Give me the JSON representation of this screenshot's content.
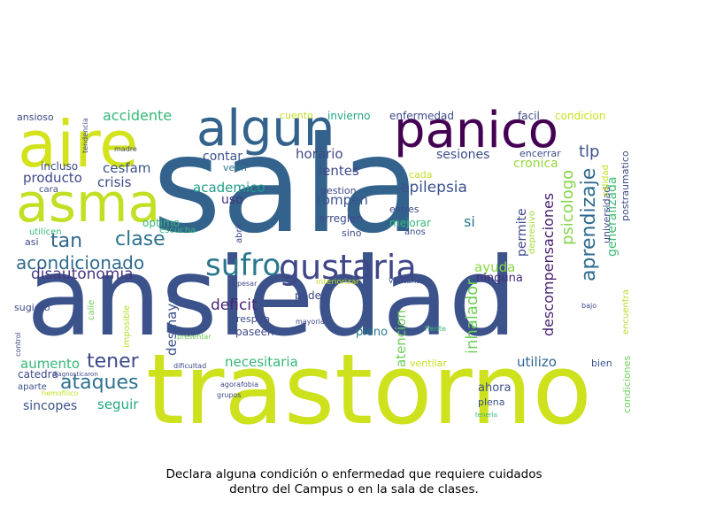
{
  "words": [
    {
      "text": "sala",
      "color": "#33638d"
    },
    {
      "text": "ansiedad",
      "color": "#3b528b"
    },
    {
      "text": "trastorno",
      "color": "#cde11d"
    },
    {
      "text": "panico",
      "color": "#440154"
    },
    {
      "text": "algun",
      "color": "#33638d"
    },
    {
      "text": "aire",
      "color": "#d2e21b"
    },
    {
      "text": "asma",
      "color": "#c2df23"
    },
    {
      "text": "gustaria",
      "color": "#3f4788"
    },
    {
      "text": "sufro",
      "color": "#2a788e"
    },
    {
      "text": "acondicionado",
      "color": "#2f6b8e"
    },
    {
      "text": "aprendizaje",
      "color": "#2f6b8e"
    },
    {
      "text": "clase",
      "color": "#2c728e"
    },
    {
      "text": "tan",
      "color": "#31688e"
    },
    {
      "text": "disautonomia",
      "color": "#453781"
    },
    {
      "text": "tener",
      "color": "#3e4989"
    },
    {
      "text": "ataques",
      "color": "#2d708e"
    },
    {
      "text": "deficit",
      "color": "#482475"
    },
    {
      "text": "desmayos",
      "color": "#3b528b"
    },
    {
      "text": "descompensaciones",
      "color": "#481f70"
    },
    {
      "text": "inhalador",
      "color": "#6ece58"
    },
    {
      "text": "psicologo",
      "color": "#86d549"
    },
    {
      "text": "generalizada",
      "color": "#3fbc73"
    },
    {
      "text": "epilepsia",
      "color": "#3b528b"
    },
    {
      "text": "horario",
      "color": "#3e4a89"
    },
    {
      "text": "lentes",
      "color": "#3e4989"
    },
    {
      "text": "sesiones",
      "color": "#3d4e8a"
    },
    {
      "text": "cronica",
      "color": "#95d840"
    },
    {
      "text": "tlp",
      "color": "#3b528b"
    },
    {
      "text": "accidente",
      "color": "#35b779"
    },
    {
      "text": "cesfam",
      "color": "#3b528b"
    },
    {
      "text": "crisis",
      "color": "#3e4989"
    },
    {
      "text": "producto",
      "color": "#3e4989"
    },
    {
      "text": "contar",
      "color": "#3b528b"
    },
    {
      "text": "academico",
      "color": "#1f9e89"
    },
    {
      "text": "uso",
      "color": "#46327e"
    },
    {
      "text": "rompen",
      "color": "#3b528b"
    },
    {
      "text": "si",
      "color": "#2a788e"
    },
    {
      "text": "permite",
      "color": "#3e4989"
    },
    {
      "text": "ayuda",
      "color": "#8bd646"
    },
    {
      "text": "ninguna",
      "color": "#482878"
    },
    {
      "text": "atencion",
      "color": "#6ece58"
    },
    {
      "text": "pleno",
      "color": "#2a788e"
    },
    {
      "text": "utilizo",
      "color": "#32648e"
    },
    {
      "text": "necesitaria",
      "color": "#35b779"
    },
    {
      "text": "aumento",
      "color": "#35b779"
    },
    {
      "text": "sincopes",
      "color": "#3b528b"
    },
    {
      "text": "seguir",
      "color": "#22a884"
    },
    {
      "text": "catedra",
      "color": "#3e4989"
    },
    {
      "text": "aparte",
      "color": "#3b528b"
    },
    {
      "text": "ahora",
      "color": "#3b528b"
    },
    {
      "text": "plena",
      "color": "#3b528b"
    },
    {
      "text": "ventilar",
      "color": "#c8e020"
    },
    {
      "text": "bien",
      "color": "#3b528b"
    },
    {
      "text": "condiciones",
      "color": "#6ece58"
    },
    {
      "text": "encuentra",
      "color": "#b5de2b"
    },
    {
      "text": "postraumatico",
      "color": "#3e4989"
    },
    {
      "text": "universidad",
      "color": "#3e4989"
    },
    {
      "text": "calidad",
      "color": "#c2df23"
    },
    {
      "text": "depresivo",
      "color": "#a0da39"
    },
    {
      "text": "abrir",
      "color": "#3e4989"
    },
    {
      "text": "sino",
      "color": "#3e4989"
    },
    {
      "text": "anos",
      "color": "#3e4989"
    },
    {
      "text": "mejorar",
      "color": "#35b779"
    },
    {
      "text": "estres",
      "color": "#3e4989"
    },
    {
      "text": "arreglen",
      "color": "#3e4989"
    },
    {
      "text": "gestion",
      "color": "#3e4989"
    },
    {
      "text": "cada",
      "color": "#c2df23"
    },
    {
      "text": "vean",
      "color": "#2a788e"
    },
    {
      "text": "encerrar",
      "color": "#3e4989"
    },
    {
      "text": "facil",
      "color": "#3e4989"
    },
    {
      "text": "condicion",
      "color": "#cde11d"
    },
    {
      "text": "cuento",
      "color": "#c2df23"
    },
    {
      "text": "invierno",
      "color": "#22a884"
    },
    {
      "text": "enfermedad",
      "color": "#3e4989"
    },
    {
      "text": "ansioso",
      "color": "#3e4989"
    },
    {
      "text": "tendencia",
      "color": "#3e4989"
    },
    {
      "text": "madre",
      "color": "#3e4989"
    },
    {
      "text": "incluso",
      "color": "#3e4989"
    },
    {
      "text": "cara",
      "color": "#3e4989"
    },
    {
      "text": "optimo",
      "color": "#35b779"
    },
    {
      "text": "escucha",
      "color": "#35b779"
    },
    {
      "text": "asi",
      "color": "#3e4989"
    },
    {
      "text": "utilicen",
      "color": "#35b779"
    },
    {
      "text": "poder",
      "color": "#3e4989"
    },
    {
      "text": "interiorizar",
      "color": "#c2df23"
    },
    {
      "text": "ventanas",
      "color": "#3e4989"
    },
    {
      "text": "pesar",
      "color": "#3e4989"
    },
    {
      "text": "respira",
      "color": "#3e4989"
    },
    {
      "text": "mayoria",
      "color": "#3e4989"
    },
    {
      "text": "paseen",
      "color": "#3e4989"
    },
    {
      "text": "frente",
      "color": "#35b779"
    },
    {
      "text": "bajo",
      "color": "#3e4989"
    },
    {
      "text": "sugiero",
      "color": "#3e4989"
    },
    {
      "text": "calle",
      "color": "#6ece58"
    },
    {
      "text": "imposible",
      "color": "#b5de2b"
    },
    {
      "text": "control",
      "color": "#3e4989"
    },
    {
      "text": "presentar",
      "color": "#6ece58"
    },
    {
      "text": "dificultad",
      "color": "#3e4989"
    },
    {
      "text": "agorafobia",
      "color": "#3e4989"
    },
    {
      "text": "grupos",
      "color": "#3e4989"
    },
    {
      "text": "diagnosticaron",
      "color": "#3e4989"
    },
    {
      "text": "hemofilico",
      "color": "#c2df23"
    },
    {
      "text": "tenerla",
      "color": "#35b779"
    }
  ],
  "caption": {
    "line1": "Declara alguna condición o enfermedad que requiere cuidados",
    "line2": "dentro del Campus o en la sala de clases."
  }
}
